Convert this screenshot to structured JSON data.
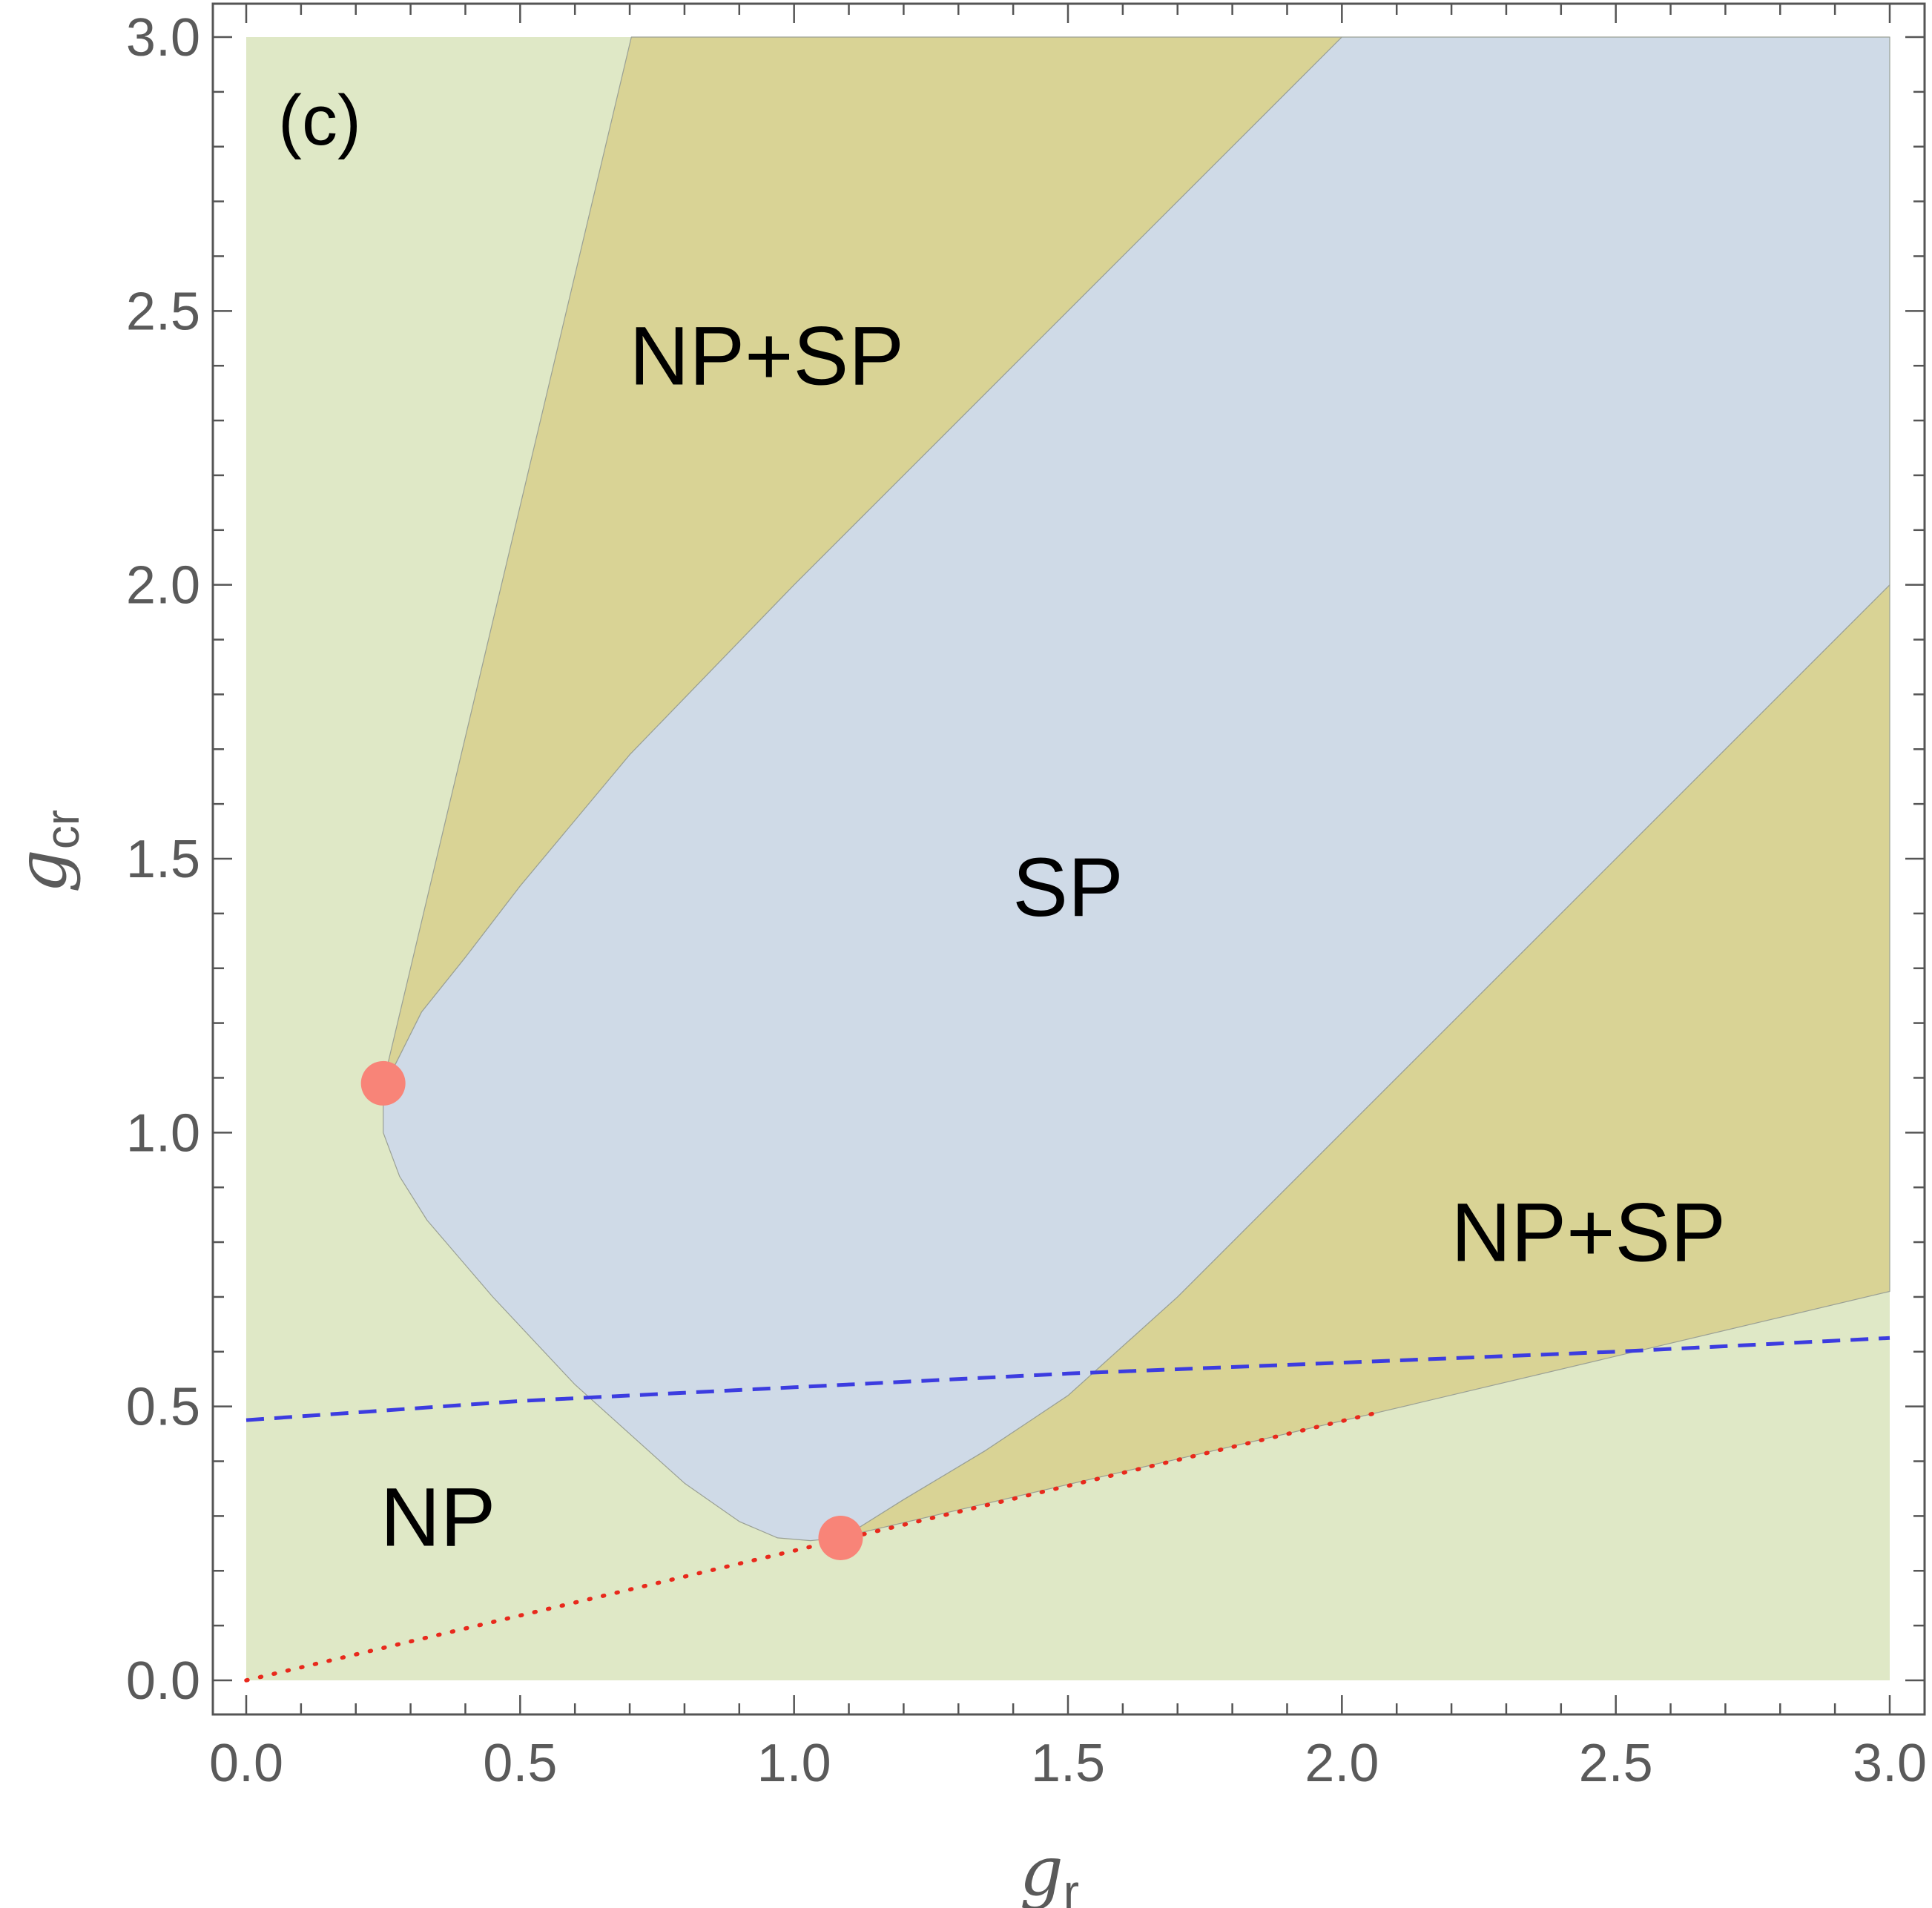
{
  "chart_data": {
    "type": "area",
    "panel_label": "(c)",
    "xlabel": {
      "base": "g",
      "sub": "r"
    },
    "ylabel": {
      "base": "g",
      "sub": "cr"
    },
    "xlim": [
      0,
      3
    ],
    "ylim": [
      0,
      3
    ],
    "x_ticks": [
      {
        "value": 0.0,
        "label": "0.0"
      },
      {
        "value": 0.5,
        "label": "0.5"
      },
      {
        "value": 1.0,
        "label": "1.0"
      },
      {
        "value": 1.5,
        "label": "1.5"
      },
      {
        "value": 2.0,
        "label": "2.0"
      },
      {
        "value": 2.5,
        "label": "2.5"
      },
      {
        "value": 3.0,
        "label": "3.0"
      }
    ],
    "y_ticks": [
      {
        "value": 0.0,
        "label": "0.0"
      },
      {
        "value": 0.5,
        "label": "0.5"
      },
      {
        "value": 1.0,
        "label": "1.0"
      },
      {
        "value": 1.5,
        "label": "1.5"
      },
      {
        "value": 2.0,
        "label": "2.0"
      },
      {
        "value": 2.5,
        "label": "2.5"
      },
      {
        "value": 3.0,
        "label": "3.0"
      }
    ],
    "minor_tick_step": 0.1,
    "grid": false,
    "colors": {
      "np": "#dfe8c6",
      "np_sp": "#d9d395",
      "sp": "#cfdae7",
      "boundary": "#9aa095",
      "dashed_line": "#3c3ce0",
      "dotted_line": "#e8291c",
      "points": "#f88478",
      "frame": "#555555"
    },
    "regions": [
      {
        "name": "NP",
        "label_pos": [
          0.35,
          0.3
        ],
        "outline": [
          [
            0,
            0
          ],
          [
            3,
            0
          ],
          [
            3,
            3
          ],
          [
            0,
            3
          ]
        ]
      },
      {
        "name": "NP+SP",
        "label_pos": [
          0.95,
          2.42
        ],
        "outline": [
          [
            0.25,
            1.09
          ],
          [
            0.703,
            3.0
          ],
          [
            2.0,
            3.0
          ],
          [
            1.86,
            2.86
          ],
          [
            1.5,
            2.5
          ],
          [
            1.0,
            2.0
          ],
          [
            0.7,
            1.69
          ],
          [
            0.5,
            1.45
          ],
          [
            0.4,
            1.32
          ],
          [
            0.32,
            1.22
          ],
          [
            0.29,
            1.16
          ],
          [
            0.27,
            1.12
          ],
          [
            0.25,
            1.09
          ]
        ]
      },
      {
        "name": "NP+SP",
        "label_pos": [
          2.45,
          0.82
        ],
        "outline": [
          [
            1.08,
            0.26
          ],
          [
            2.07,
            0.49
          ],
          [
            3.0,
            0.71
          ],
          [
            3.0,
            2.0
          ],
          [
            2.5,
            1.5
          ],
          [
            2.0,
            1.0
          ],
          [
            1.7,
            0.7
          ],
          [
            1.5,
            0.52
          ],
          [
            1.35,
            0.42
          ],
          [
            1.2,
            0.33
          ],
          [
            1.12,
            0.28
          ],
          [
            1.08,
            0.26
          ]
        ]
      },
      {
        "name": "SP",
        "label_pos": [
          1.5,
          1.45
        ],
        "outline": [
          [
            0.25,
            1.09
          ],
          [
            0.27,
            1.12
          ],
          [
            0.29,
            1.16
          ],
          [
            0.32,
            1.22
          ],
          [
            0.4,
            1.32
          ],
          [
            0.5,
            1.45
          ],
          [
            0.7,
            1.69
          ],
          [
            1.0,
            2.0
          ],
          [
            1.5,
            2.5
          ],
          [
            1.86,
            2.86
          ],
          [
            2.0,
            3.0
          ],
          [
            3.0,
            3.0
          ],
          [
            3.0,
            2.0
          ],
          [
            2.5,
            1.5
          ],
          [
            2.0,
            1.0
          ],
          [
            1.7,
            0.7
          ],
          [
            1.5,
            0.52
          ],
          [
            1.35,
            0.42
          ],
          [
            1.2,
            0.33
          ],
          [
            1.12,
            0.28
          ],
          [
            1.08,
            0.26
          ],
          [
            1.03,
            0.255
          ],
          [
            0.97,
            0.26
          ],
          [
            0.9,
            0.29
          ],
          [
            0.8,
            0.36
          ],
          [
            0.6,
            0.54
          ],
          [
            0.45,
            0.7
          ],
          [
            0.33,
            0.84
          ],
          [
            0.28,
            0.92
          ],
          [
            0.25,
            1.0
          ],
          [
            0.25,
            1.09
          ]
        ]
      }
    ],
    "lines": [
      {
        "style": "dashed",
        "x": [
          0,
          0.5,
          1.0,
          1.5,
          2.0,
          2.5,
          3.0
        ],
        "y": [
          0.475,
          0.51,
          0.535,
          0.56,
          0.58,
          0.6,
          0.625
        ]
      },
      {
        "style": "dotted",
        "x": [
          0,
          2.07
        ],
        "y": [
          0,
          0.49
        ]
      }
    ],
    "points": [
      {
        "x": 0.25,
        "y": 1.09
      },
      {
        "x": 1.085,
        "y": 0.26
      }
    ]
  }
}
